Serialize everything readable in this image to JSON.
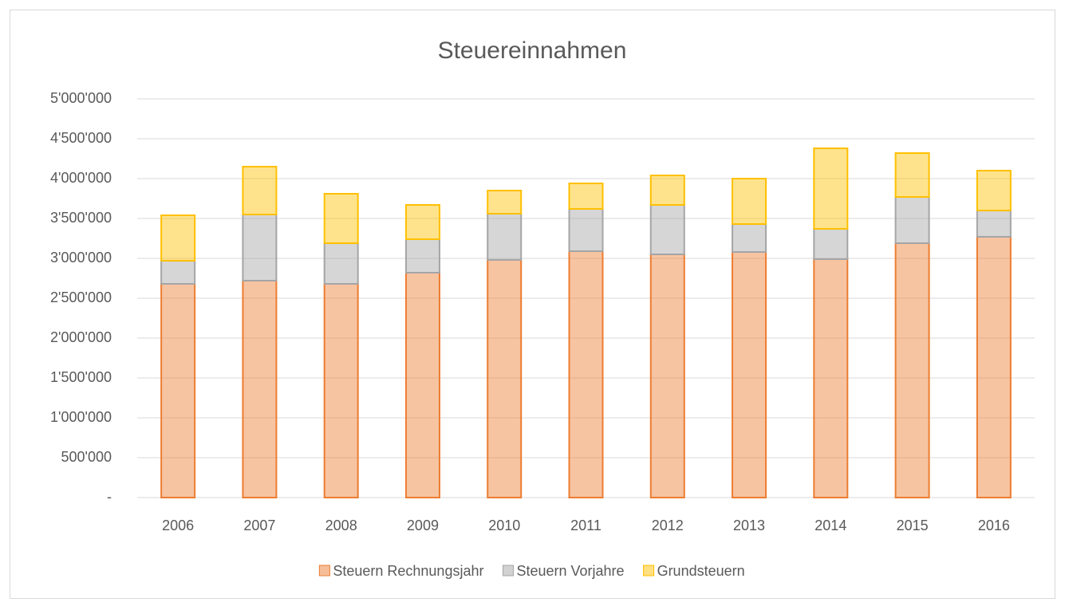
{
  "chart_data": {
    "type": "stacked_bar",
    "title": "Steuereinnahmen",
    "categories": [
      "2006",
      "2007",
      "2008",
      "2009",
      "2010",
      "2011",
      "2012",
      "2013",
      "2014",
      "2015",
      "2016"
    ],
    "series": [
      {
        "name": "Steuern Rechnungsjahr",
        "color": "#ed7d31",
        "values": [
          2680000,
          2720000,
          2680000,
          2820000,
          2980000,
          3090000,
          3050000,
          3080000,
          2990000,
          3190000,
          3270000
        ]
      },
      {
        "name": "Steuern Vorjahre",
        "color": "#a5a5a5",
        "values": [
          290000,
          830000,
          510000,
          420000,
          580000,
          530000,
          620000,
          350000,
          380000,
          580000,
          330000
        ]
      },
      {
        "name": "Grundsteuern",
        "color": "#ffc000",
        "values": [
          570000,
          600000,
          620000,
          430000,
          290000,
          320000,
          370000,
          570000,
          1010000,
          550000,
          500000
        ]
      }
    ],
    "ylim": [
      0,
      5000000
    ],
    "yticks": [
      {
        "value": 0,
        "label": "-"
      },
      {
        "value": 500000,
        "label": "500'000"
      },
      {
        "value": 1000000,
        "label": "1'000'000"
      },
      {
        "value": 1500000,
        "label": "1'500'000"
      },
      {
        "value": 2000000,
        "label": "2'000'000"
      },
      {
        "value": 2500000,
        "label": "2'500'000"
      },
      {
        "value": 3000000,
        "label": "3'000'000"
      },
      {
        "value": 3500000,
        "label": "3'500'000"
      },
      {
        "value": 4000000,
        "label": "4'000'000"
      },
      {
        "value": 4500000,
        "label": "4'500'000"
      },
      {
        "value": 5000000,
        "label": "5'000'000"
      }
    ],
    "grid": true,
    "legend": "bottom"
  }
}
